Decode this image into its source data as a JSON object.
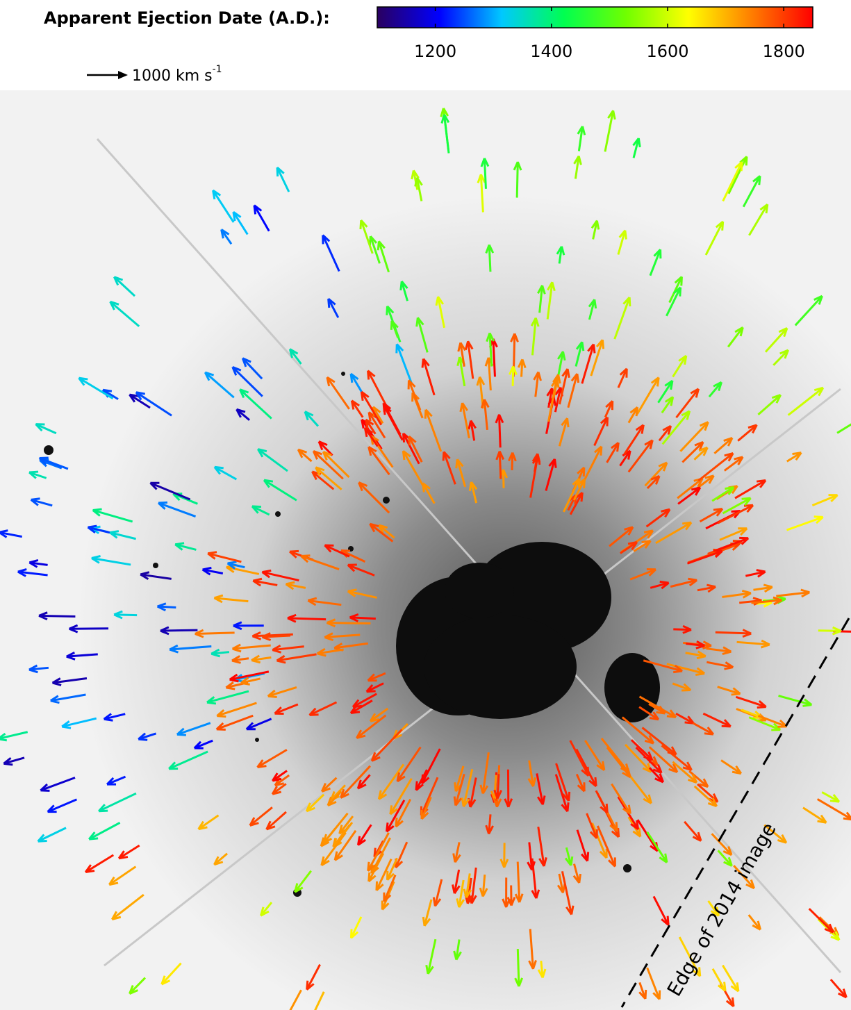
{
  "colorbar": {
    "label": "Apparent Ejection Date (A.D.):",
    "range": [
      1100,
      1850
    ],
    "ticks": [
      1200,
      1400,
      1600,
      1800
    ],
    "colors": [
      "#2a0060",
      "#0000ff",
      "#00c8ff",
      "#00ff50",
      "#70ff00",
      "#ffff00",
      "#ff8000",
      "#ff0000"
    ]
  },
  "scale_arrow": {
    "label": "1000 km s",
    "exponent": "-1"
  },
  "annotation": "Edge of 2014 image"
}
